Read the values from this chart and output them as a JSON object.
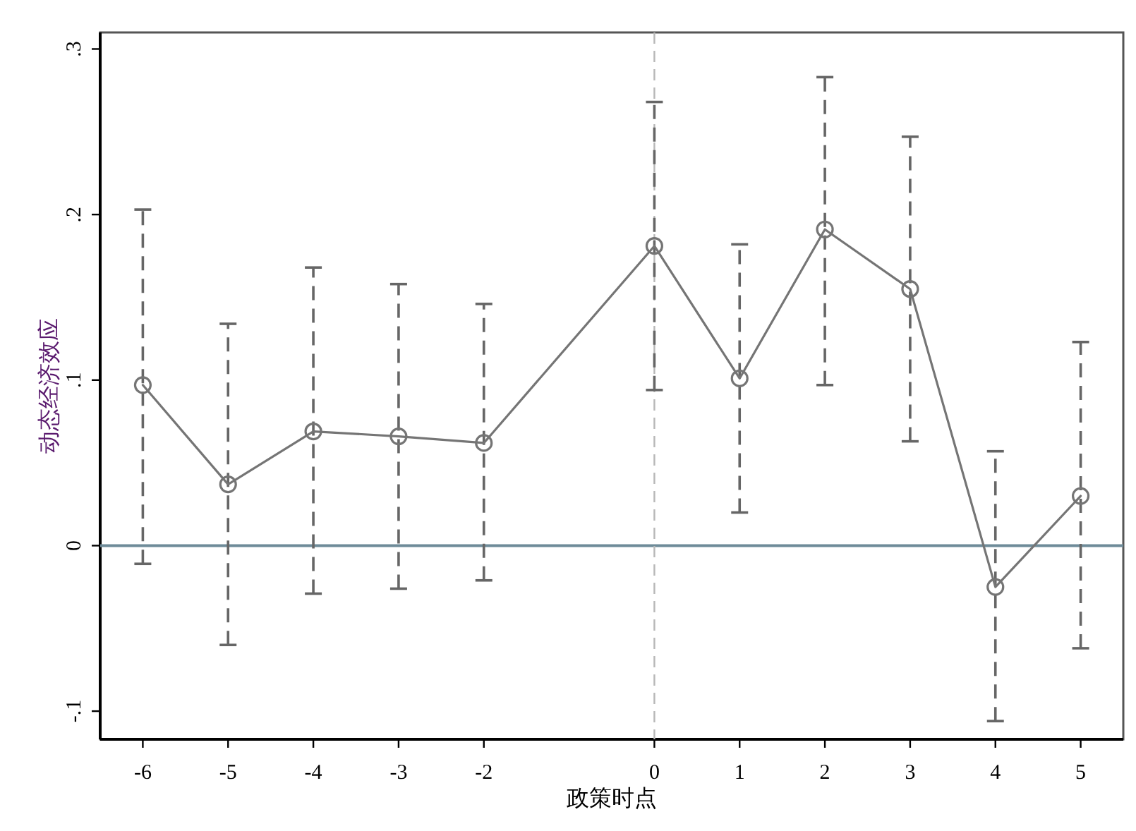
{
  "chart_data": {
    "type": "line",
    "xlabel": "政策时点",
    "ylabel": "动态经济效应",
    "x": [
      -6,
      -5,
      -4,
      -3,
      -2,
      0,
      1,
      2,
      3,
      4,
      5
    ],
    "series": [
      {
        "color": "#757575",
        "values": [
          0.097,
          0.037,
          0.069,
          0.066,
          0.062,
          0.181,
          0.101,
          0.191,
          0.155,
          -0.025,
          0.03
        ],
        "errors": [
          [
            -0.011,
            0.203
          ],
          [
            -0.06,
            0.134
          ],
          [
            -0.029,
            0.168
          ],
          [
            -0.026,
            0.158
          ],
          [
            -0.021,
            0.146
          ],
          [
            0.094,
            0.268
          ],
          [
            0.02,
            0.182
          ],
          [
            0.097,
            0.283
          ],
          [
            0.063,
            0.247
          ],
          [
            -0.106,
            0.057
          ],
          [
            -0.062,
            0.123
          ]
        ]
      }
    ],
    "xlim": [
      -6.5,
      5.5
    ],
    "xticks": [
      -6,
      -5,
      -4,
      -3,
      -2,
      0,
      1,
      2,
      3,
      4,
      5
    ],
    "ylim": [
      -0.117,
      0.31
    ],
    "yticks": [
      {
        "value": -0.1,
        "label": "-.1"
      },
      0,
      {
        "value": 0.1,
        "label": ".1"
      },
      {
        "value": 0.2,
        "label": ".2"
      },
      {
        "value": 0.3,
        "label": ".3"
      }
    ],
    "ref_lines": [
      {
        "axis": "y",
        "value": 0,
        "color": "#6e8b99",
        "line_style": "solid"
      },
      {
        "axis": "x",
        "value": 0,
        "color": "#b8b8b8",
        "line_style": "dashed"
      }
    ],
    "marker": "circle",
    "line_style": "solid"
  }
}
